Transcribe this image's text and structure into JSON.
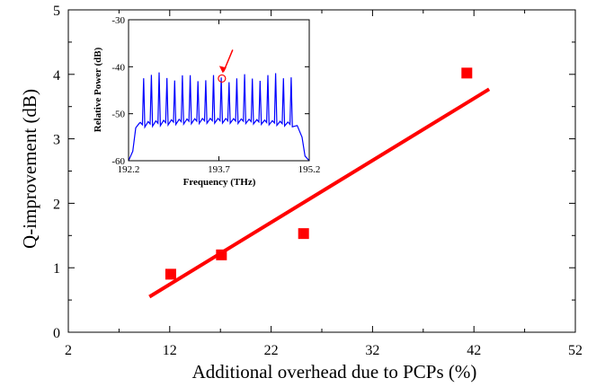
{
  "chart_data": [
    {
      "type": "scatter",
      "xlabel": "Additional overhead due to PCPs  (%)",
      "ylabel": "Q-improvement (dB)",
      "xlim": [
        2,
        52
      ],
      "ylim": [
        0,
        5
      ],
      "x_ticks": [
        "2",
        "12",
        "22",
        "32",
        "42",
        "52"
      ],
      "y_ticks": [
        "0",
        "1",
        "2",
        "3",
        "4",
        "5"
      ],
      "grid": false,
      "series": [
        {
          "type": "scatter",
          "marker": "square",
          "color": "#ff0000",
          "x": [
            12.1,
            17.1,
            25.2,
            41.3
          ],
          "y": [
            0.9,
            1.2,
            1.53,
            4.02
          ]
        },
        {
          "type": "line",
          "color": "#ff0000",
          "x": [
            10.0,
            43.5
          ],
          "y": [
            0.55,
            3.77
          ]
        }
      ]
    },
    {
      "type": "line",
      "xlabel": "Frequency (THz)",
      "ylabel": "Relative Power (dB)",
      "xlim": [
        192.2,
        195.2
      ],
      "ylim": [
        -60,
        -30
      ],
      "x_ticks": [
        "192.2",
        "193.7",
        "195.2"
      ],
      "y_ticks": [
        "-30",
        "-40",
        "-50",
        "-60"
      ],
      "color": "#0000ff",
      "peak_count": 20,
      "peak_range_thz": [
        192.45,
        194.9
      ],
      "floor_db": -52.5,
      "peak_level_db": -42.5,
      "annotation": {
        "marker": "circle",
        "color": "#ff0000",
        "x": 193.75,
        "y": -42.5
      }
    }
  ]
}
